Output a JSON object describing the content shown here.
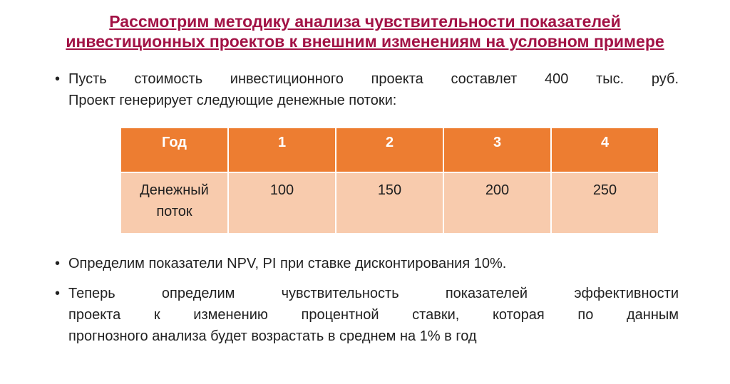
{
  "marker_glyph": "•",
  "title": {
    "lines": [
      "Рассмотрим методику анализа чувствительности показателей",
      "инвестиционных проектов к внешним изменениям на условном примере"
    ]
  },
  "bullets": [
    {
      "lines": [
        "Пусть стоимость инвестиционного проекта составлет 400 тыс. руб.",
        "Проект генерирует следующие денежные потоки:"
      ]
    },
    {
      "lines": [
        "Определим показатели NPV, PI при ставке дисконтирования 10%."
      ]
    },
    {
      "lines": [
        "Теперь определим чувствительность показателей эффективности",
        "проекта к изменению процентной ставки, которая по данным",
        "прогнозного анализа будет возрастать в среднем на 1% в год"
      ]
    }
  ],
  "cash_flow_table": {
    "header": [
      "Год",
      "1",
      "2",
      "3",
      "4"
    ],
    "row_label": "Денежный поток",
    "values": [
      "100",
      "150",
      "200",
      "250"
    ]
  },
  "colors": {
    "title_text": "#A21245",
    "table_header_bg": "#ED7D31",
    "table_row_bg": "#F8CBAD",
    "body_text": "#222222"
  }
}
